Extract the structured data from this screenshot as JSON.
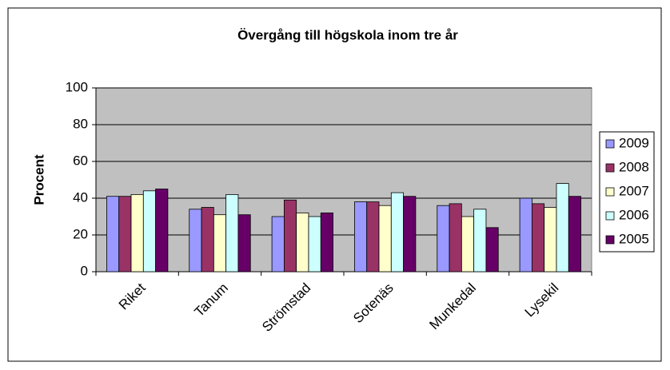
{
  "chart_data": {
    "type": "bar",
    "title": "Övergång till högskola inom tre år",
    "y_label": "Procent",
    "categories": [
      "Riket",
      "Tanum",
      "Strömstad",
      "Sotenäs",
      "Munkedal",
      "Lysekil"
    ],
    "series": [
      {
        "name": "2009",
        "color": "#9999ff",
        "values": [
          41,
          34,
          30,
          38,
          36,
          40
        ]
      },
      {
        "name": "2008",
        "color": "#993366",
        "values": [
          41,
          35,
          39,
          38,
          37,
          37
        ]
      },
      {
        "name": "2007",
        "color": "#ffffcc",
        "values": [
          42,
          31,
          32,
          36,
          30,
          35
        ]
      },
      {
        "name": "2006",
        "color": "#ccffff",
        "values": [
          44,
          42,
          30,
          43,
          34,
          48
        ]
      },
      {
        "name": "2005",
        "color": "#660066",
        "values": [
          45,
          31,
          32,
          41,
          24,
          41
        ]
      }
    ],
    "ylim": [
      0,
      100
    ],
    "yticks": [
      0,
      20,
      40,
      60,
      80,
      100
    ],
    "grid": true,
    "legend": "right",
    "plot_background": "#c0c0c0"
  }
}
